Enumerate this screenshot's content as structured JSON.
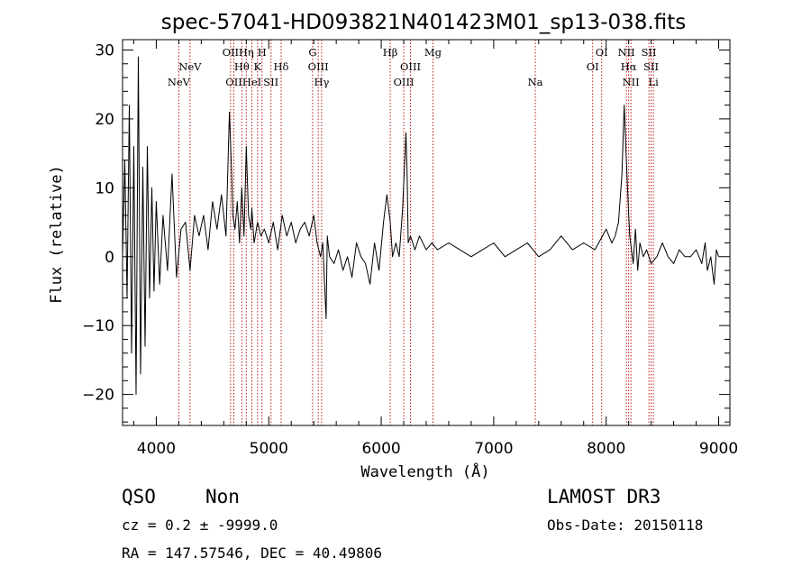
{
  "chart_data": {
    "type": "line",
    "title": "spec-57041-HD093821N401423M01_sp13-038.fits",
    "xlabel": "Wavelength (Å)",
    "ylabel": "Flux (relative)",
    "xlim": [
      3700,
      9100
    ],
    "ylim": [
      -24.5,
      31.5
    ],
    "xticks": [
      4000,
      5000,
      6000,
      7000,
      8000,
      9000
    ],
    "xtick_labels": [
      "4000",
      "5000",
      "6000",
      "7000",
      "8000",
      "9000"
    ],
    "yticks": [
      -20,
      -10,
      0,
      10,
      20,
      30
    ],
    "ytick_labels": [
      "−20",
      "−10",
      "0",
      "10",
      "20",
      "30"
    ],
    "grid": false,
    "series": [
      {
        "x": [
          3700,
          3720,
          3740,
          3760,
          3780,
          3800,
          3820,
          3840,
          3860,
          3880,
          3900,
          3920,
          3940,
          3960,
          3980,
          4000,
          4030,
          4060,
          4100,
          4140,
          4180,
          4220,
          4260,
          4300,
          4340,
          4380,
          4420,
          4460,
          4500,
          4540,
          4580,
          4620,
          4650,
          4670,
          4680,
          4700,
          4720,
          4740,
          4760,
          4780,
          4800,
          4820,
          4840,
          4850,
          4870,
          4900,
          4930,
          4960,
          5000,
          5040,
          5080,
          5120,
          5160,
          5200,
          5240,
          5280,
          5320,
          5360,
          5400,
          5430,
          5460,
          5480,
          5510,
          5520,
          5540,
          5580,
          5620,
          5660,
          5700,
          5740,
          5780,
          5820,
          5860,
          5900,
          5940,
          5980,
          6020,
          6050,
          6080,
          6100,
          6130,
          6160,
          6190,
          6220,
          6230,
          6240,
          6260,
          6300,
          6340,
          6400,
          6450,
          6500,
          6600,
          6700,
          6800,
          6900,
          7000,
          7100,
          7200,
          7300,
          7400,
          7500,
          7600,
          7700,
          7800,
          7900,
          8000,
          8050,
          8080,
          8110,
          8140,
          8160,
          8175,
          8190,
          8200,
          8210,
          8225,
          8240,
          8260,
          8280,
          8300,
          8330,
          8360,
          8400,
          8450,
          8500,
          8550,
          8600,
          8650,
          8700,
          8750,
          8800,
          8850,
          8880,
          8900,
          8930,
          8960,
          8980,
          9000
        ],
        "values": [
          0,
          14,
          -6,
          22,
          -14,
          16,
          -20,
          29,
          -17,
          13,
          -13,
          16,
          -6,
          10,
          -5,
          8,
          -4,
          6,
          -2,
          12,
          -3,
          4,
          5,
          -2,
          6,
          3,
          6,
          1,
          8,
          4,
          9,
          3,
          21,
          12,
          6,
          4,
          8,
          2,
          10,
          3,
          16,
          6,
          4,
          7,
          2,
          5,
          3,
          4,
          2,
          5,
          1,
          6,
          3,
          5,
          2,
          4,
          5,
          3,
          6,
          2,
          0,
          2,
          -9,
          3,
          0,
          -1,
          1,
          -2,
          0,
          -3,
          2,
          0,
          -1,
          -4,
          2,
          -2,
          5,
          9,
          5,
          0,
          2,
          0,
          7,
          18,
          12,
          2,
          3,
          1,
          3,
          1,
          2,
          1,
          2,
          1,
          0,
          1,
          2,
          0,
          1,
          2,
          0,
          1,
          3,
          1,
          2,
          1,
          4,
          2,
          3,
          5,
          12,
          22,
          16,
          10,
          6,
          3,
          1,
          -1,
          4,
          -2,
          2,
          0,
          1,
          -1,
          0,
          2,
          0,
          -1,
          1,
          0,
          0,
          1,
          -1,
          2,
          -2,
          0,
          -4,
          1,
          0
        ]
      }
    ],
    "line_markers": [
      {
        "name": "NeV",
        "x": 4200,
        "row": 2
      },
      {
        "name": "NeV",
        "x": 4300,
        "row": 1
      },
      {
        "name": "OII",
        "x": 4660,
        "row": 0
      },
      {
        "name": "OII",
        "x": 4690,
        "row": 2
      },
      {
        "name": "Hθ",
        "x": 4760,
        "row": 1
      },
      {
        "name": "Hη",
        "x": 4800,
        "row": 0
      },
      {
        "name": "HeI",
        "x": 4850,
        "row": 2
      },
      {
        "name": "K",
        "x": 4900,
        "row": 1
      },
      {
        "name": "H",
        "x": 4940,
        "row": 0
      },
      {
        "name": "SII",
        "x": 5020,
        "row": 2
      },
      {
        "name": "Hδ",
        "x": 5110,
        "row": 1
      },
      {
        "name": "G",
        "x": 5390,
        "row": 0
      },
      {
        "name": "OIII",
        "x": 5440,
        "row": 1
      },
      {
        "name": "Hγ",
        "x": 5470,
        "row": 2
      },
      {
        "name": "Hβ",
        "x": 6080,
        "row": 0
      },
      {
        "name": "OIII",
        "x": 6200,
        "row": 2
      },
      {
        "name": "OIII",
        "x": 6260,
        "row": 1
      },
      {
        "name": "Mg",
        "x": 6460,
        "row": 0
      },
      {
        "name": "Na",
        "x": 7370,
        "row": 2
      },
      {
        "name": "OI",
        "x": 7880,
        "row": 1
      },
      {
        "name": "OI",
        "x": 7960,
        "row": 0
      },
      {
        "name": "NII",
        "x": 8180,
        "row": 0
      },
      {
        "name": "Hα",
        "x": 8200,
        "row": 1
      },
      {
        "name": "NII",
        "x": 8220,
        "row": 2
      },
      {
        "name": "SII",
        "x": 8380,
        "row": 0
      },
      {
        "name": "SII",
        "x": 8400,
        "row": 1
      },
      {
        "name": "Li",
        "x": 8420,
        "row": 2
      }
    ]
  },
  "footer": {
    "class": "QSO",
    "subclass": "Non",
    "cz": "cz = 0.2 ± -9999.0",
    "radec": "RA = 147.57546, DEC =  40.49806",
    "survey": "LAMOST DR3",
    "obsdate": "Obs-Date: 20150118"
  }
}
